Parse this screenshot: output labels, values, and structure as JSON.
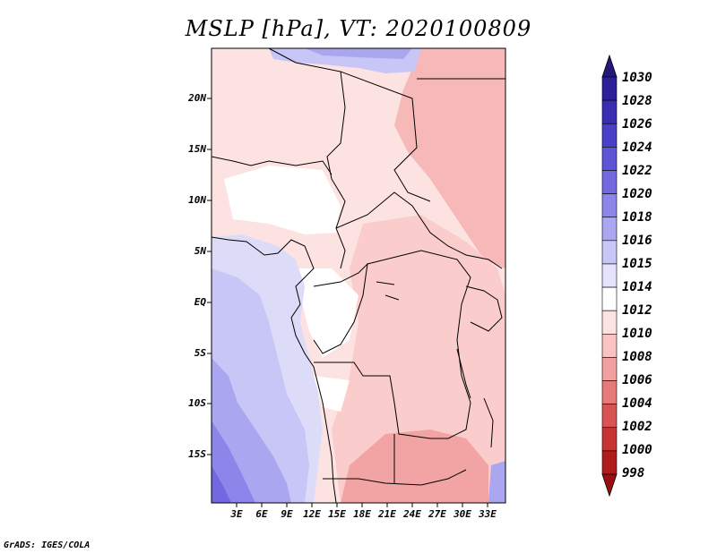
{
  "title": "MSLP [hPa], VT: 2020100809",
  "lat_labels": [
    "20N",
    "15N",
    "10N",
    "5N",
    "EQ",
    "5S",
    "10S",
    "15S"
  ],
  "lon_labels": [
    "3E",
    "6E",
    "9E",
    "12E",
    "15E",
    "18E",
    "21E",
    "24E",
    "27E",
    "30E",
    "33E"
  ],
  "colorbar": {
    "labels": [
      "1030",
      "1028",
      "1026",
      "1024",
      "1022",
      "1020",
      "1018",
      "1016",
      "1015",
      "1014",
      "1012",
      "1010",
      "1008",
      "1006",
      "1004",
      "1002",
      "1000",
      "998"
    ],
    "colors": [
      "#241878",
      "#2d1f9a",
      "#3a2db4",
      "#4a3fc8",
      "#5d55d6",
      "#7268e0",
      "#8d86ea",
      "#aaa6f0",
      "#c8c6f6",
      "#e4e3fb",
      "#ffffff",
      "#fde2e2",
      "#f9c3c3",
      "#f2a0a0",
      "#e67a7a",
      "#d85454",
      "#c83434",
      "#b01c1c",
      "#991010"
    ]
  },
  "credit": "GrADS: IGES/COLA"
}
